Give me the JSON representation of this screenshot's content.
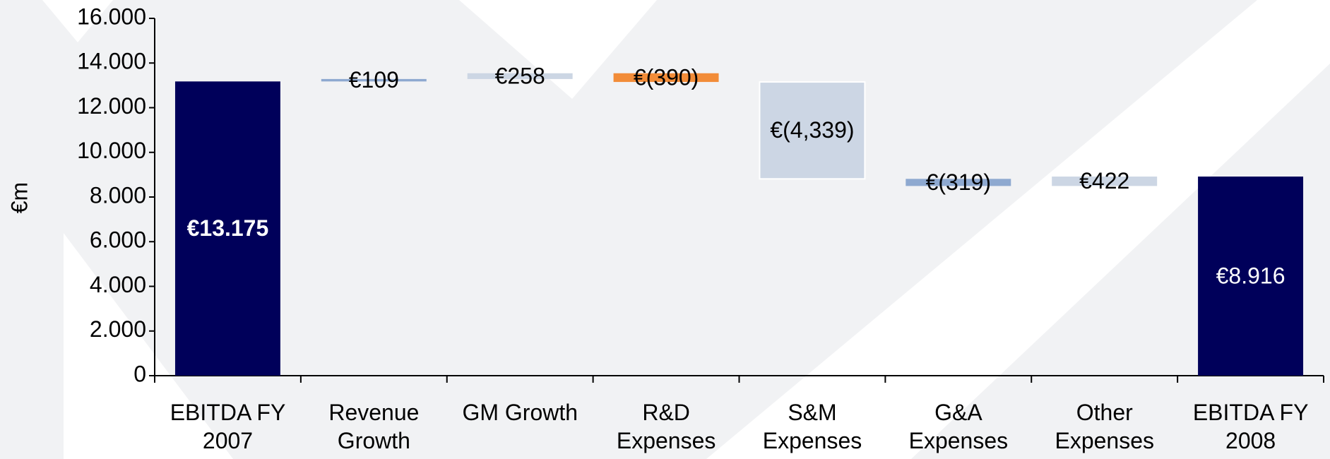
{
  "chart_data": {
    "type": "waterfall",
    "y_label": "€m",
    "categories": [
      "EBITDA FY 2007",
      "Revenue Growth",
      "GM Growth",
      "R&D Expenses",
      "S&M Expenses",
      "G&A Expenses",
      "Other Expenses",
      "EBITDA FY 2008"
    ],
    "values": [
      13175,
      109,
      258,
      -390,
      -4339,
      -319,
      422,
      8916
    ],
    "value_labels": [
      "€13.175",
      "€109",
      "€258",
      "€(390)",
      "€(4,339)",
      "€(319)",
      "€422",
      "€8.916"
    ],
    "totals": [
      true,
      false,
      false,
      false,
      false,
      false,
      false,
      true
    ],
    "colors": [
      "#00005a",
      "#8ea9d0",
      "#ccd6e4",
      "#f28c38",
      "#ccd6e4",
      "#8ea9d0",
      "#ccd6e4",
      "#00005a"
    ],
    "ylim": [
      0,
      16000
    ],
    "yticks": [
      0,
      {
        "value": 2000,
        "label": "2.000"
      },
      {
        "value": 4000,
        "label": "4.000"
      },
      {
        "value": 6000,
        "label": "6.000"
      },
      {
        "value": 8000,
        "label": "8.000"
      },
      {
        "value": 10000,
        "label": "10.000"
      },
      {
        "value": 12000,
        "label": "12.000"
      },
      {
        "value": 14000,
        "label": "14.000"
      },
      {
        "value": 16000,
        "label": "16.000"
      }
    ]
  }
}
